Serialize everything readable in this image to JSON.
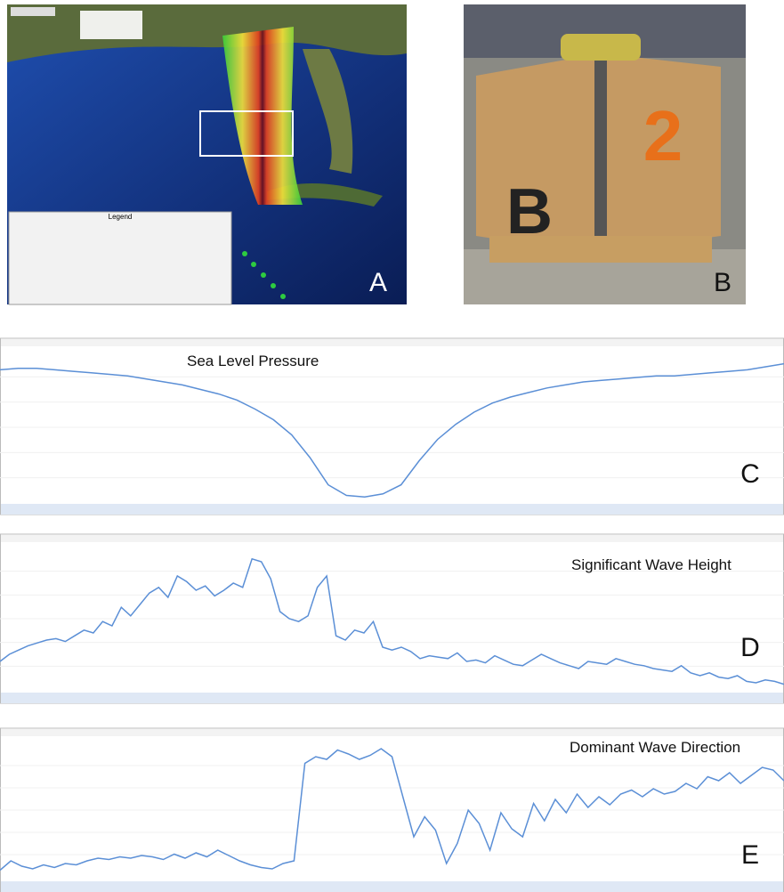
{
  "panels": [
    {
      "label": "A",
      "legend_title": "Legend"
    },
    {
      "label": "B"
    }
  ],
  "chart_data": [
    {
      "type": "line",
      "title": "Sea Level Pressure",
      "label": "C",
      "color": "#5b8fd6",
      "ylim": [
        0,
        100
      ],
      "values": [
        88,
        89,
        89,
        88,
        87,
        86,
        85,
        84,
        82,
        80,
        78,
        75,
        72,
        68,
        62,
        55,
        45,
        30,
        12,
        5,
        4,
        6,
        12,
        28,
        42,
        52,
        60,
        66,
        70,
        73,
        76,
        78,
        80,
        81,
        82,
        83,
        84,
        84,
        85,
        86,
        87,
        88,
        90,
        92
      ]
    },
    {
      "type": "line",
      "title": "Significant Wave Height",
      "label": "D",
      "color": "#5b8fd6",
      "ylim": [
        0,
        100
      ],
      "values": [
        20,
        25,
        28,
        31,
        33,
        35,
        36,
        34,
        38,
        42,
        40,
        48,
        45,
        58,
        52,
        60,
        68,
        72,
        65,
        80,
        76,
        70,
        73,
        66,
        70,
        75,
        72,
        92,
        90,
        78,
        55,
        50,
        48,
        52,
        72,
        80,
        38,
        35,
        42,
        40,
        48,
        30,
        28,
        30,
        27,
        22,
        24,
        23,
        22,
        26,
        20,
        21,
        19,
        24,
        21,
        18,
        17,
        21,
        25,
        22,
        19,
        17,
        15,
        20,
        19,
        18,
        22,
        20,
        18,
        17,
        15,
        14,
        13,
        17,
        12,
        10,
        12,
        9,
        8,
        10,
        6,
        5,
        7,
        6,
        4
      ]
    },
    {
      "type": "line",
      "title": "Dominant Wave Direction",
      "label": "E",
      "color": "#5b8fd6",
      "ylim": [
        0,
        100
      ],
      "values": [
        5,
        12,
        8,
        6,
        9,
        7,
        10,
        9,
        12,
        14,
        13,
        15,
        14,
        16,
        15,
        13,
        17,
        14,
        18,
        15,
        20,
        16,
        12,
        9,
        7,
        6,
        10,
        12,
        85,
        90,
        88,
        95,
        92,
        88,
        91,
        96,
        90,
        60,
        30,
        45,
        35,
        10,
        25,
        50,
        40,
        20,
        48,
        36,
        30,
        55,
        42,
        58,
        48,
        62,
        52,
        60,
        54,
        62,
        65,
        60,
        66,
        62,
        64,
        70,
        66,
        75,
        72,
        78,
        70,
        76,
        82,
        80,
        72
      ]
    }
  ]
}
